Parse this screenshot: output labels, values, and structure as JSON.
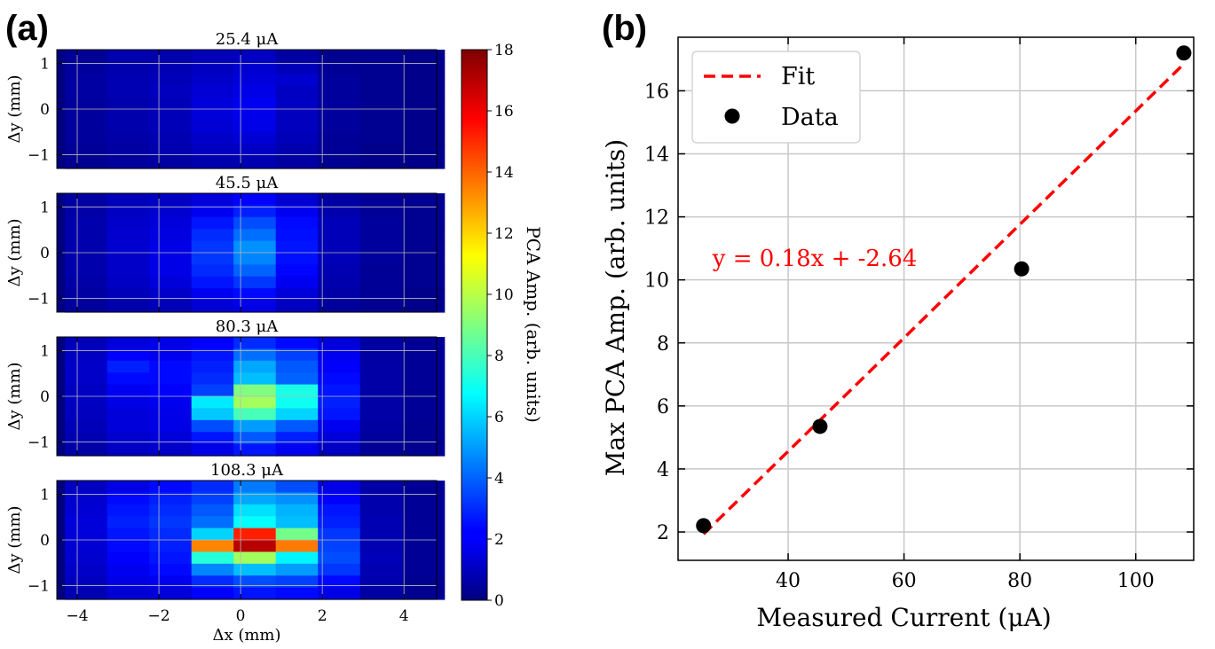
{
  "panel_labels": {
    "a": "(a)",
    "b": "(b)"
  },
  "chart_data": [
    {
      "type": "heatmap",
      "panel": "(a)",
      "xlabel": "Δx (mm)",
      "ylabel": "Δy (mm)",
      "xlim": [
        -4.5,
        4.8
      ],
      "ylim": [
        -1.3,
        1.3
      ],
      "xticks": [
        -4,
        -2,
        0,
        2,
        4
      ],
      "xtick_labels": [
        "−4",
        "−2",
        "0",
        "2",
        "4"
      ],
      "yticks": [
        1,
        0,
        -1
      ],
      "ytick_labels": [
        "1",
        "0",
        "−1"
      ],
      "grid": true,
      "colormap": "jet",
      "colorbar": {
        "label": "PCA Amp. (arb. units)",
        "range": [
          0,
          18
        ],
        "ticks": [
          0,
          2,
          4,
          6,
          8,
          10,
          12,
          14,
          16,
          18
        ],
        "tick_labels": [
          "0",
          "2",
          "4",
          "6",
          "8",
          "10",
          "12",
          "14",
          "16",
          "18"
        ]
      },
      "columns": 9,
      "rows": 10,
      "maps": [
        {
          "title": "25.4 μA",
          "grid_values": [
            [
              0.4,
              0.8,
              0.8,
              1.0,
              1.2,
              0.6,
              0.3,
              0.3,
              0.2
            ],
            [
              0.5,
              0.8,
              0.9,
              1.1,
              1.4,
              1.0,
              0.4,
              0.3,
              0.2
            ],
            [
              0.6,
              0.9,
              1.0,
              1.3,
              1.6,
              1.4,
              0.5,
              0.3,
              0.2
            ],
            [
              0.6,
              0.9,
              1.1,
              1.5,
              1.8,
              1.2,
              0.5,
              0.3,
              0.2
            ],
            [
              0.5,
              0.8,
              1.0,
              1.6,
              2.0,
              1.2,
              0.5,
              0.3,
              0.2
            ],
            [
              0.5,
              0.8,
              1.0,
              1.6,
              1.9,
              1.1,
              0.5,
              0.3,
              0.2
            ],
            [
              0.5,
              0.8,
              1.0,
              1.5,
              1.8,
              1.1,
              0.5,
              0.3,
              0.2
            ],
            [
              0.5,
              0.7,
              0.9,
              1.3,
              1.5,
              1.0,
              0.4,
              0.3,
              0.2
            ],
            [
              0.4,
              0.6,
              0.8,
              1.1,
              1.2,
              0.8,
              0.4,
              0.2,
              0.2
            ],
            [
              0.3,
              0.5,
              0.6,
              0.8,
              0.9,
              0.6,
              0.3,
              0.2,
              0.2
            ]
          ]
        },
        {
          "title": "45.5 μA",
          "grid_values": [
            [
              0.6,
              1.0,
              1.2,
              1.6,
              2.2,
              1.4,
              0.6,
              0.4,
              0.3
            ],
            [
              0.7,
              1.2,
              1.4,
              2.0,
              2.8,
              2.0,
              0.8,
              0.4,
              0.3
            ],
            [
              0.8,
              1.3,
              1.6,
              2.6,
              3.6,
              2.4,
              1.0,
              0.5,
              0.3
            ],
            [
              0.8,
              1.4,
              1.7,
              3.0,
              4.2,
              2.5,
              1.0,
              0.5,
              0.3
            ],
            [
              0.8,
              1.4,
              1.8,
              3.2,
              4.8,
              2.6,
              1.0,
              0.5,
              0.3
            ],
            [
              0.8,
              1.3,
              1.8,
              3.2,
              4.6,
              2.5,
              1.0,
              0.5,
              0.3
            ],
            [
              0.8,
              1.3,
              1.8,
              3.0,
              4.0,
              2.3,
              0.9,
              0.4,
              0.3
            ],
            [
              0.7,
              1.2,
              1.6,
              2.6,
              3.2,
              2.0,
              0.8,
              0.4,
              0.3
            ],
            [
              0.6,
              1.0,
              1.3,
              2.0,
              2.4,
              1.6,
              0.7,
              0.4,
              0.2
            ],
            [
              0.5,
              0.8,
              1.0,
              1.5,
              1.8,
              1.2,
              0.5,
              0.3,
              0.2
            ]
          ]
        },
        {
          "title": "80.3 μA",
          "grid_values": [
            [
              1.0,
              1.6,
              1.8,
              2.2,
              3.0,
              2.4,
              1.6,
              0.6,
              0.4
            ],
            [
              1.2,
              2.2,
              2.0,
              2.6,
              4.2,
              3.4,
              2.0,
              0.6,
              0.4
            ],
            [
              1.3,
              2.8,
              2.4,
              2.8,
              5.2,
              3.8,
              2.2,
              0.7,
              0.4
            ],
            [
              1.3,
              2.4,
              2.4,
              3.0,
              5.6,
              4.0,
              2.4,
              0.7,
              0.4
            ],
            [
              1.2,
              2.0,
              2.2,
              3.4,
              9.0,
              7.2,
              2.6,
              0.7,
              0.4
            ],
            [
              1.2,
              1.8,
              2.0,
              6.4,
              9.6,
              7.0,
              2.8,
              0.7,
              0.4
            ],
            [
              1.1,
              1.6,
              1.8,
              5.8,
              8.0,
              6.0,
              2.6,
              0.7,
              0.4
            ],
            [
              1.0,
              1.6,
              1.8,
              3.6,
              5.0,
              3.8,
              2.0,
              0.6,
              0.3
            ],
            [
              0.9,
              1.4,
              1.6,
              2.6,
              3.8,
              2.8,
              1.6,
              0.5,
              0.3
            ],
            [
              0.7,
              1.2,
              1.3,
              1.8,
              2.6,
              2.0,
              1.2,
              0.4,
              0.3
            ]
          ]
        },
        {
          "title": "108.3 μA",
          "grid_values": [
            [
              1.2,
              1.8,
              2.4,
              3.0,
              4.4,
              3.6,
              1.8,
              0.7,
              0.4
            ],
            [
              1.4,
              2.4,
              2.8,
              3.4,
              5.2,
              4.8,
              2.2,
              0.8,
              0.4
            ],
            [
              1.5,
              2.6,
              3.0,
              3.8,
              6.2,
              5.4,
              2.6,
              0.8,
              0.4
            ],
            [
              1.6,
              2.8,
              3.2,
              4.2,
              6.8,
              5.6,
              2.8,
              0.9,
              0.4
            ],
            [
              1.6,
              2.6,
              3.0,
              6.0,
              15.2,
              8.8,
              3.2,
              0.9,
              0.4
            ],
            [
              1.5,
              2.4,
              2.8,
              13.4,
              17.0,
              13.6,
              3.4,
              0.9,
              0.4
            ],
            [
              1.4,
              2.2,
              2.6,
              7.4,
              9.6,
              6.6,
              3.6,
              1.0,
              0.4
            ],
            [
              1.3,
              2.0,
              2.4,
              4.6,
              5.6,
              5.0,
              3.2,
              0.9,
              0.4
            ],
            [
              1.1,
              1.8,
              2.0,
              3.0,
              3.6,
              3.4,
              2.4,
              0.8,
              0.3
            ],
            [
              0.9,
              1.5,
              1.6,
              2.2,
              2.6,
              2.4,
              1.8,
              0.6,
              0.3
            ]
          ]
        }
      ]
    },
    {
      "type": "scatter",
      "panel": "(b)",
      "xlabel": "Measured Current (μA)",
      "ylabel": "Max PCA Amp. (arb. units)",
      "xlim": [
        21,
        110
      ],
      "ylim": [
        1.1,
        17.7
      ],
      "xticks": [
        40,
        60,
        80,
        100
      ],
      "xtick_labels": [
        "40",
        "60",
        "80",
        "100"
      ],
      "yticks": [
        2,
        4,
        6,
        8,
        10,
        12,
        14,
        16
      ],
      "ytick_labels": [
        "2",
        "4",
        "6",
        "8",
        "10",
        "12",
        "14",
        "16"
      ],
      "grid": true,
      "legend": {
        "position": "top-left",
        "entries": [
          "Fit",
          "Data"
        ]
      },
      "series": [
        {
          "name": "Data",
          "x": [
            25.4,
            45.5,
            80.3,
            108.3
          ],
          "y": [
            2.2,
            5.35,
            10.35,
            17.2
          ],
          "color": "#000000"
        },
        {
          "name": "Fit",
          "style": "dashed",
          "color": "#ff0000",
          "slope": 0.18,
          "intercept": -2.64,
          "x_range": [
            25.4,
            108.3
          ]
        }
      ],
      "annotations": [
        {
          "text": "y = 0.18x + -2.64",
          "color": "#ff0000",
          "x": 30,
          "y": 11.0
        }
      ]
    }
  ]
}
